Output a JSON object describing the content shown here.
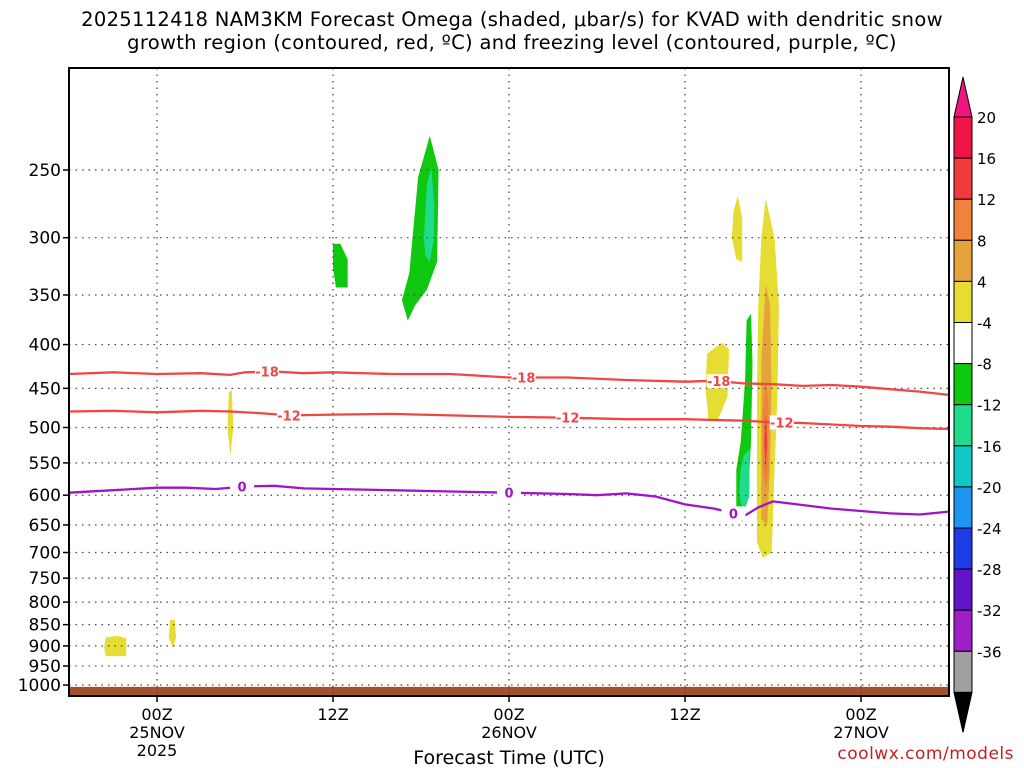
{
  "chart_data": {
    "type": "contour",
    "title_line1": "2025112418 NAM3KM Forecast Omega (shaded, μbar/s) for KVAD with dendritic snow",
    "title_line2": "growth region (contoured, red, ºC) and freezing level (contoured, purple, ºC)",
    "xlabel": "Forecast Time (UTC)",
    "ylabel": "",
    "xlim_hours": [
      -6,
      54
    ],
    "ylim_hpa": [
      1030,
      190
    ],
    "y_ticks": [
      250,
      300,
      350,
      400,
      450,
      500,
      550,
      600,
      650,
      700,
      750,
      800,
      850,
      900,
      950,
      1000
    ],
    "x_ticks": [
      {
        "hour": 0,
        "label": "00Z",
        "sub1": "25NOV",
        "sub2": "2025"
      },
      {
        "hour": 12,
        "label": "12Z",
        "sub1": "",
        "sub2": ""
      },
      {
        "hour": 24,
        "label": "00Z",
        "sub1": "26NOV",
        "sub2": ""
      },
      {
        "hour": 36,
        "label": "12Z",
        "sub1": "",
        "sub2": ""
      },
      {
        "hour": 48,
        "label": "00Z",
        "sub1": "27NOV",
        "sub2": ""
      }
    ],
    "colorbar": {
      "labels": [
        "20",
        "16",
        "12",
        "8",
        "4",
        "-4",
        "-8",
        "-12",
        "-16",
        "-20",
        "-24",
        "-28",
        "-32",
        "-36"
      ],
      "colors": [
        "#f0144b",
        "#f03c3c",
        "#f0823c",
        "#e6a33c",
        "#e6dc32",
        "#ffffff",
        "#10c810",
        "#1edc8c",
        "#10c8c8",
        "#1e96f0",
        "#1e3ce6",
        "#6414c8",
        "#a01ec8",
        "#a0a0a0"
      ],
      "over_color": "#f0147d",
      "under_color": "#000000"
    },
    "contours": [
      {
        "name": "-18",
        "color": "#f04646",
        "points": [
          [
            -6,
            433
          ],
          [
            -3,
            431
          ],
          [
            0,
            433
          ],
          [
            3,
            432
          ],
          [
            5,
            434
          ],
          [
            6,
            431
          ],
          [
            8,
            430
          ],
          [
            10,
            432
          ],
          [
            12,
            431
          ],
          [
            16,
            433
          ],
          [
            20,
            433
          ],
          [
            24,
            437
          ],
          [
            28,
            437
          ],
          [
            32,
            440
          ],
          [
            36,
            442
          ],
          [
            38,
            441
          ],
          [
            40,
            444
          ],
          [
            42,
            445
          ],
          [
            44,
            447
          ],
          [
            46,
            446
          ],
          [
            48,
            448
          ],
          [
            50,
            451
          ],
          [
            52,
            454
          ],
          [
            54,
            458
          ]
        ],
        "labels": [
          [
            7.5,
            "-18"
          ],
          [
            25,
            "-18"
          ],
          [
            38.3,
            "-18"
          ]
        ]
      },
      {
        "name": "-12",
        "color": "#f04646",
        "points": [
          [
            -6,
            479
          ],
          [
            -3,
            478
          ],
          [
            0,
            480
          ],
          [
            3,
            478
          ],
          [
            5,
            479
          ],
          [
            7,
            481
          ],
          [
            9,
            484
          ],
          [
            12,
            483
          ],
          [
            16,
            482
          ],
          [
            20,
            484
          ],
          [
            24,
            486
          ],
          [
            28,
            487
          ],
          [
            32,
            489
          ],
          [
            36,
            489
          ],
          [
            38,
            490
          ],
          [
            40,
            491
          ],
          [
            42,
            493
          ],
          [
            44,
            494
          ],
          [
            46,
            496
          ],
          [
            48,
            498
          ],
          [
            50,
            499
          ],
          [
            52,
            501
          ],
          [
            54,
            502
          ]
        ],
        "labels": [
          [
            9,
            "-12"
          ],
          [
            28,
            "-12"
          ],
          [
            42.6,
            "-12"
          ]
        ]
      },
      {
        "name": "0",
        "color": "#a014c8",
        "points": [
          [
            -6,
            596
          ],
          [
            -3,
            592
          ],
          [
            0,
            588
          ],
          [
            2,
            588
          ],
          [
            4,
            590
          ],
          [
            6,
            586
          ],
          [
            8,
            585
          ],
          [
            10,
            589
          ],
          [
            12,
            590
          ],
          [
            16,
            592
          ],
          [
            20,
            594
          ],
          [
            24,
            596
          ],
          [
            28,
            598
          ],
          [
            30,
            600
          ],
          [
            32,
            597
          ],
          [
            34,
            602
          ],
          [
            36,
            615
          ],
          [
            38,
            622
          ],
          [
            39,
            628
          ],
          [
            40,
            635
          ],
          [
            41,
            620
          ],
          [
            42,
            610
          ],
          [
            44,
            616
          ],
          [
            46,
            622
          ],
          [
            48,
            626
          ],
          [
            50,
            630
          ],
          [
            52,
            632
          ],
          [
            54,
            627
          ]
        ],
        "labels": [
          [
            5.8,
            "0"
          ],
          [
            24,
            "0"
          ],
          [
            39.3,
            "0"
          ]
        ]
      }
    ],
    "omega_features": [
      {
        "desc": "yellow 4-8 patch",
        "hour": -2.8,
        "hpa": 907,
        "value": 5
      },
      {
        "desc": "yellow 4-8 patch",
        "hour": 1.1,
        "hpa": 885,
        "value": 5
      },
      {
        "desc": "yellow 4-8 sliver",
        "hour": 5.0,
        "hpa": 490,
        "value": 5
      },
      {
        "desc": "green -4 to -8 blob",
        "hour": 12.4,
        "hpa": 318,
        "value": -6
      },
      {
        "desc": "green/cyan ascent column",
        "hour": 18.0,
        "hpa": 285,
        "value": -14
      },
      {
        "desc": "yellow column",
        "hour": 39.5,
        "hpa": 290,
        "value": 5
      },
      {
        "desc": "yellow column",
        "hour": 38.3,
        "hpa": 445,
        "value": 5
      },
      {
        "desc": "green/cyan ascent column",
        "hour": 40.0,
        "hpa": 560,
        "value": -16
      },
      {
        "desc": "yellow-orange-red subsidence column",
        "hour": 41.4,
        "hpa": 470,
        "value": 16
      }
    ],
    "ground_color": "#a0522d"
  },
  "footer": {
    "credit": "coolwx.com/models"
  }
}
